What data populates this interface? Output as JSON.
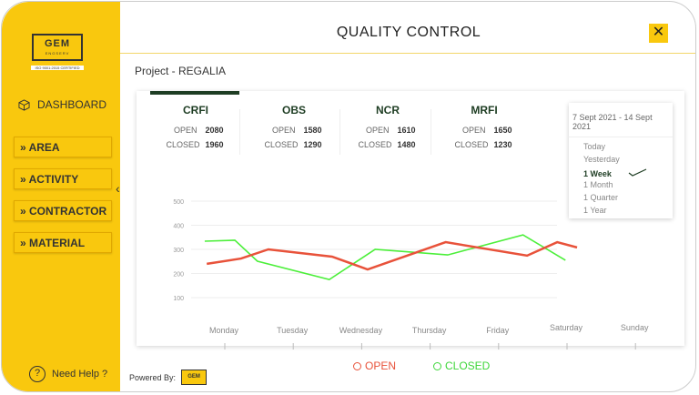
{
  "brand": {
    "logo_text": "GEM",
    "logo_sub": "ENGSERV",
    "certification": "ISO 9001:2015 CERTIFIED"
  },
  "sidebar": {
    "dashboard": "DASHBOARD",
    "items": [
      {
        "label": "» AREA"
      },
      {
        "label": "» ACTIVITY"
      },
      {
        "label": "» CONTRACTOR"
      },
      {
        "label": "» MATERIAL"
      }
    ],
    "collapse_icon": "‹",
    "help": "Need Help ?"
  },
  "header": {
    "title": "QUALITY CONTROL",
    "close": "✕"
  },
  "project": "Project - REGALIA",
  "kpis": [
    {
      "name": "CRFI",
      "open_label": "OPEN",
      "open": "2080",
      "closed_label": "CLOSED",
      "closed": "1960"
    },
    {
      "name": "OBS",
      "open_label": "OPEN",
      "open": "1580",
      "closed_label": "CLOSED",
      "closed": "1290"
    },
    {
      "name": "NCR",
      "open_label": "OPEN",
      "open": "1610",
      "closed_label": "CLOSED",
      "closed": "1480"
    },
    {
      "name": "MRFI",
      "open_label": "OPEN",
      "open": "1650",
      "closed_label": "CLOSED",
      "closed": "1230"
    }
  ],
  "date_filter": {
    "range": "7 Sept 2021 - 14 Sept 2021",
    "options": [
      "Today",
      "Yesterday",
      "1 Week",
      "1 Month",
      "1 Quarter",
      "1 Year"
    ],
    "selected": "1 Week"
  },
  "chart_data": {
    "type": "line",
    "categories": [
      "Monday",
      "Tuesday",
      "Wednesday",
      "Thursday",
      "Friday",
      "Saturday",
      "Sunday"
    ],
    "yticks": [
      100,
      200,
      300,
      400,
      500
    ],
    "ylim": [
      0,
      500
    ],
    "grid": true,
    "legend_position": "bottom",
    "series": [
      {
        "name": "OPEN",
        "color": "#e8523a",
        "x": [
          -0.25,
          0.25,
          0.65,
          1.58,
          2.1,
          3.24,
          4.43,
          4.87,
          5.16
        ],
        "values": [
          240,
          262,
          300,
          270,
          217,
          330,
          274,
          330,
          308
        ]
      },
      {
        "name": "CLOSED",
        "color": "#4cef3a",
        "x": [
          -0.28,
          0.16,
          0.49,
          1.54,
          2.21,
          3.27,
          4.37,
          4.99
        ],
        "values": [
          334,
          338,
          251,
          175,
          300,
          277,
          360,
          255
        ]
      }
    ]
  },
  "footer": {
    "powered_by": "Powered By:",
    "logo_text": "GEM"
  }
}
